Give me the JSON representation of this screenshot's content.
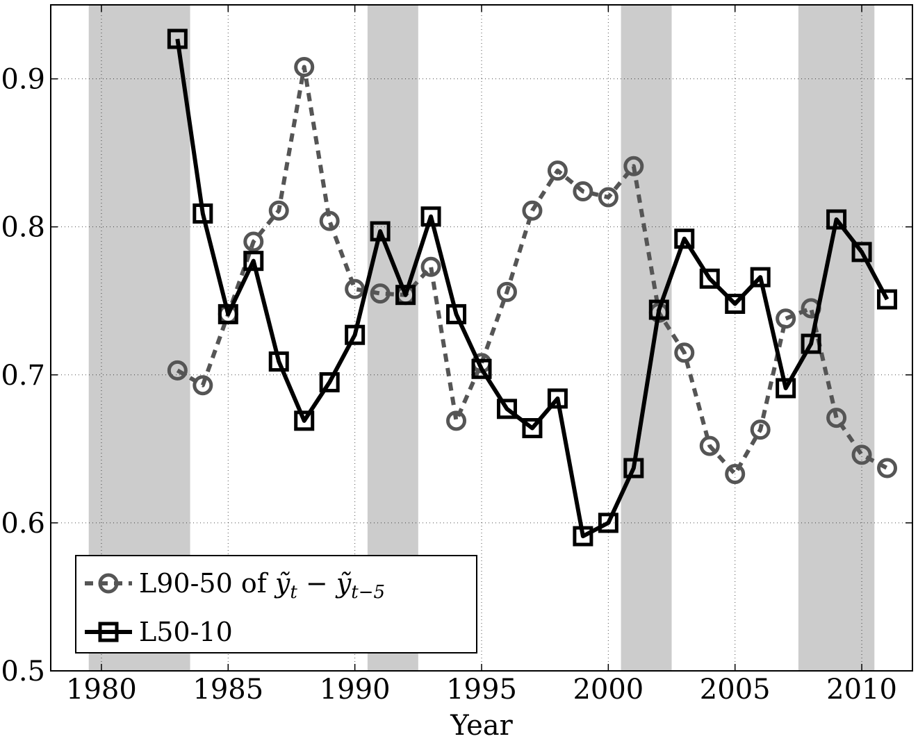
{
  "chart_data": {
    "type": "line",
    "title": "",
    "xlabel": "Year",
    "ylabel": "",
    "xlim": [
      1978,
      2012
    ],
    "ylim": [
      0.5,
      0.95
    ],
    "xticks": [
      1980,
      1985,
      1990,
      1995,
      2000,
      2005,
      2010
    ],
    "xtick_labels": [
      "1980",
      "1985",
      "1990",
      "1995",
      "2000",
      "2005",
      "2010"
    ],
    "yticks": [
      0.5,
      0.6,
      0.7,
      0.8,
      0.9
    ],
    "ytick_labels": [
      "0.5",
      "0.6",
      "0.7",
      "0.8",
      "0.9"
    ],
    "grid": true,
    "recession_shading": [
      [
        1979.5,
        1983.5
      ],
      [
        1990.5,
        1992.5
      ],
      [
        2000.5,
        2002.5
      ],
      [
        2007.5,
        2010.5
      ]
    ],
    "x": [
      1983,
      1984,
      1985,
      1986,
      1987,
      1988,
      1989,
      1990,
      1991,
      1992,
      1993,
      1994,
      1995,
      1996,
      1997,
      1998,
      1999,
      2000,
      2001,
      2002,
      2003,
      2004,
      2005,
      2006,
      2007,
      2008,
      2009,
      2010,
      2011
    ],
    "series": [
      {
        "name": "L90-50 of ỹt − ỹt−5",
        "legend_prefix": "L90-50 of ",
        "legend_math": "ỹ",
        "legend_sub1": "t",
        "legend_minus": " − ",
        "legend_math2": "ỹ",
        "legend_sub2": "t−5",
        "color": "#555555",
        "style": "dashed",
        "marker": "circle",
        "values": [
          0.703,
          0.693,
          0.741,
          0.79,
          0.811,
          0.908,
          0.804,
          0.758,
          0.755,
          0.754,
          0.773,
          0.669,
          0.708,
          0.756,
          0.811,
          0.838,
          0.824,
          0.82,
          0.841,
          0.742,
          0.715,
          0.652,
          0.633,
          0.663,
          0.738,
          0.745,
          0.671,
          0.646,
          0.637
        ]
      },
      {
        "name": "L50-10",
        "legend_prefix": "L50-10",
        "color": "#000000",
        "style": "solid",
        "marker": "square",
        "values": [
          0.927,
          0.809,
          0.741,
          0.777,
          0.709,
          0.669,
          0.695,
          0.727,
          0.797,
          0.754,
          0.807,
          0.741,
          0.704,
          0.677,
          0.664,
          0.684,
          0.591,
          0.6,
          0.637,
          0.744,
          0.792,
          0.765,
          0.748,
          0.766,
          0.691,
          0.721,
          0.805,
          0.783,
          0.751
        ]
      }
    ],
    "legend_position": "bottom-left"
  }
}
